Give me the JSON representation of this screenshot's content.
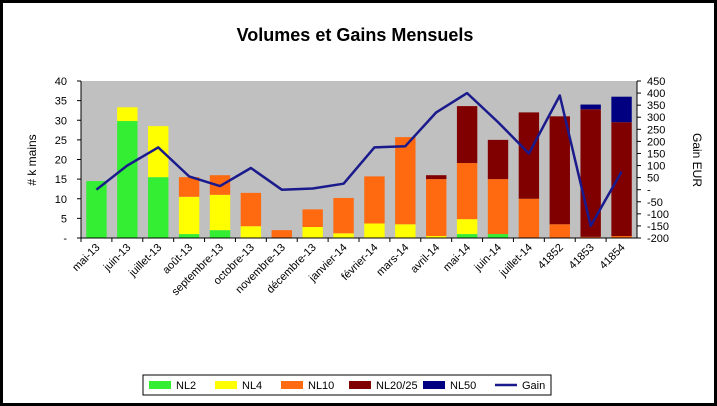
{
  "chart_data": {
    "type": "bar",
    "title": "Volumes et Gains Mensuels",
    "ylabel": "# k mains",
    "y2label": "Gain EUR",
    "ylim": [
      0,
      40
    ],
    "y2lim": [
      -200,
      450
    ],
    "yticks": [
      "-",
      "5",
      "10",
      "15",
      "20",
      "25",
      "30",
      "35",
      "40"
    ],
    "y2ticks": [
      "-200",
      "-150",
      "-100",
      "-50",
      "-",
      "50",
      "100",
      "150",
      "200",
      "250",
      "300",
      "350",
      "400",
      "450"
    ],
    "grid": false,
    "legend": "bottom",
    "stacked": true,
    "categories": [
      "mai-13",
      "juin-13",
      "juillet-13",
      "août-13",
      "septembre-13",
      "octobre-13",
      "novembre-13",
      "décembre-13",
      "janvier-14",
      "février-14",
      "mars-14",
      "avril-14",
      "mai-14",
      "juin-14",
      "juillet-14",
      "41852",
      "41853",
      "41854"
    ],
    "series": [
      {
        "name": "NL2",
        "color": "#33ee33",
        "values": [
          14.5,
          29.8,
          15.5,
          1.0,
          2.0,
          0,
          0,
          0,
          0,
          0,
          0,
          0,
          1.0,
          1.0,
          0,
          0,
          0,
          0
        ]
      },
      {
        "name": "NL4",
        "color": "#ffff00",
        "values": [
          0,
          3.5,
          13.0,
          9.5,
          9.0,
          3.0,
          0,
          2.8,
          1.2,
          3.7,
          3.5,
          0.5,
          3.8,
          0,
          0,
          0,
          0,
          0
        ]
      },
      {
        "name": "NL10",
        "color": "#ff6a10",
        "values": [
          0,
          0,
          0,
          5.0,
          5.0,
          8.5,
          2.0,
          4.5,
          9.0,
          12.0,
          22.2,
          14.5,
          14.3,
          14.0,
          10.0,
          3.5,
          0.3,
          0.5
        ]
      },
      {
        "name": "NL20/25",
        "color": "#800000",
        "values": [
          0,
          0,
          0,
          0,
          0,
          0,
          0,
          0,
          0,
          0,
          0,
          1.0,
          14.5,
          10.0,
          22.0,
          27.5,
          32.5,
          29.0
        ]
      },
      {
        "name": "NL50",
        "color": "#000080",
        "values": [
          0,
          0,
          0,
          0,
          0,
          0,
          0,
          0,
          0,
          0,
          0,
          0,
          0,
          0,
          0,
          0,
          1.2,
          6.5
        ]
      }
    ],
    "line_series": {
      "name": "Gain",
      "color": "#1a1a8c",
      "axis": "right",
      "values": [
        0,
        100,
        175,
        55,
        15,
        90,
        0,
        5,
        25,
        175,
        180,
        320,
        400,
        280,
        150,
        390,
        -150,
        75
      ]
    }
  }
}
